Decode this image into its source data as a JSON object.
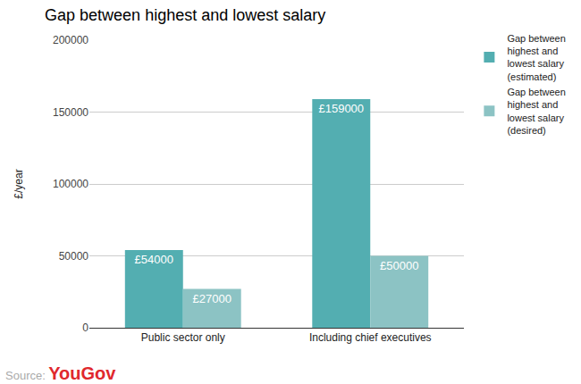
{
  "chart_data": {
    "type": "bar",
    "title": "Gap between highest and lowest salary",
    "y_label": "£/year",
    "categories": [
      "Public sector only",
      "Including chief executives"
    ],
    "series": [
      {
        "name": "Gap between highest and lowest salary (estimated)",
        "color": "#53aeb1",
        "values": [
          54000,
          159000
        ],
        "value_labels": [
          "£54000",
          "£159000"
        ]
      },
      {
        "name": "Gap between highest and lowest salary (desired)",
        "color": "#8cc3c4",
        "values": [
          27000,
          50000
        ],
        "value_labels": [
          "£27000",
          "£50000"
        ]
      }
    ],
    "ylim": [
      0,
      200000
    ],
    "yticks": [
      0,
      50000,
      100000,
      150000,
      200000
    ],
    "grid": true,
    "legend": "top right",
    "data_labels": true,
    "source_label": "Source:",
    "source": "YouGov"
  }
}
